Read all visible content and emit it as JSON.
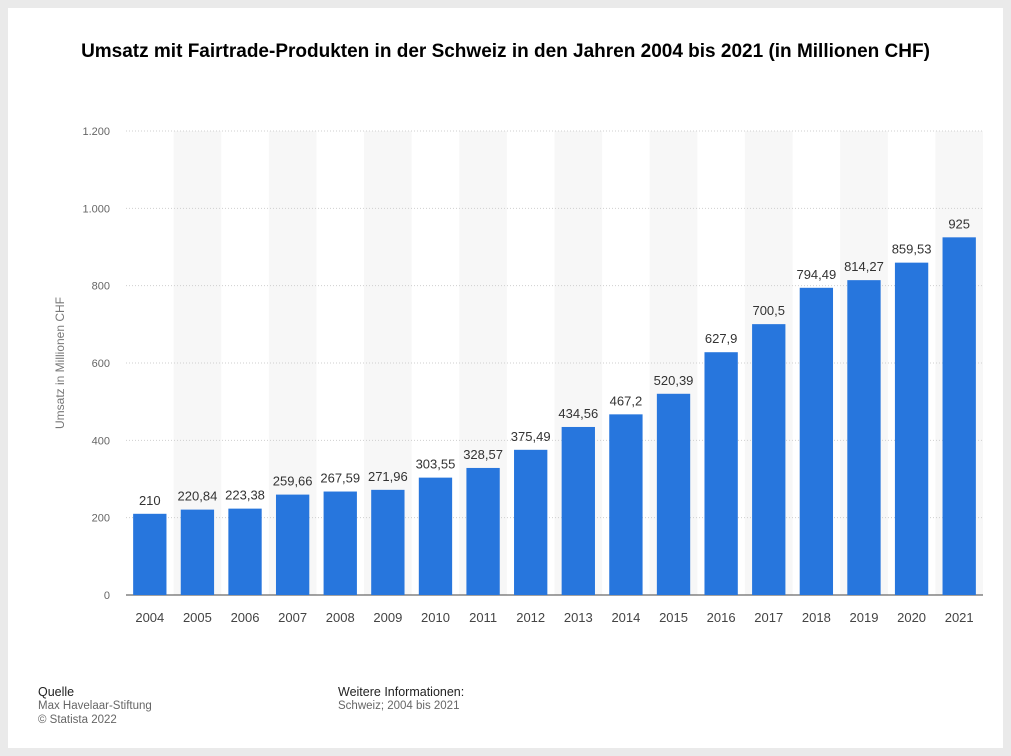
{
  "chart_data": {
    "type": "bar",
    "title": "Umsatz mit Fairtrade-Produkten in der Schweiz in den Jahren 2004 bis 2021 (in Millionen CHF)",
    "xlabel": "",
    "ylabel": "Umsatz in Millionen CHF",
    "ylim": [
      0,
      1200
    ],
    "yticks": [
      0,
      200,
      400,
      600,
      800,
      1000,
      1200
    ],
    "ytick_labels": [
      "0",
      "200",
      "400",
      "600",
      "800",
      "1.000",
      "1.200"
    ],
    "grid": true,
    "bar_color": "#2776dd",
    "categories": [
      "2004",
      "2005",
      "2006",
      "2007",
      "2008",
      "2009",
      "2010",
      "2011",
      "2012",
      "2013",
      "2014",
      "2015",
      "2016",
      "2017",
      "2018",
      "2019",
      "2020",
      "2021"
    ],
    "values": [
      210,
      220.84,
      223.38,
      259.66,
      267.59,
      271.96,
      303.55,
      328.57,
      375.49,
      434.56,
      467.2,
      520.39,
      627.9,
      700.5,
      794.49,
      814.27,
      859.53,
      925
    ],
    "value_labels": [
      "210",
      "220,84",
      "223,38",
      "259,66",
      "267,59",
      "271,96",
      "303,55",
      "328,57",
      "375,49",
      "434,56",
      "467,2",
      "520,39",
      "627,9",
      "700,5",
      "794,49",
      "814,27",
      "859,53",
      "925"
    ]
  },
  "footer": {
    "source_heading": "Quelle",
    "source_name": "Max Havelaar-Stiftung",
    "copyright": "© Statista 2022",
    "info_heading": "Weitere Informationen:",
    "info_text": "Schweiz; 2004 bis 2021"
  }
}
